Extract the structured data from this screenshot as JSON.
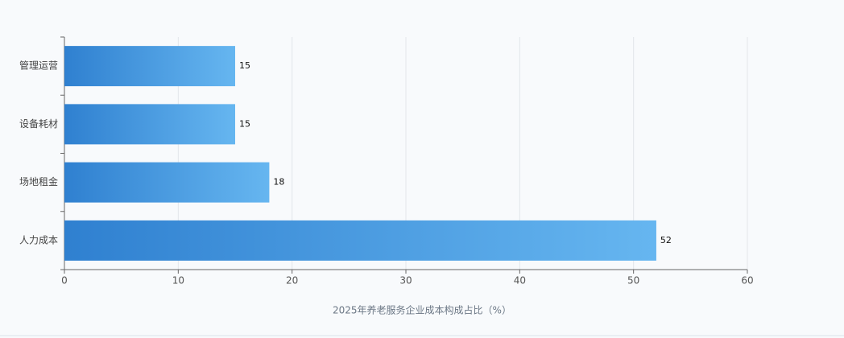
{
  "chart_data": {
    "type": "bar",
    "orientation": "horizontal",
    "x_label": "2025年养老服务企业成本构成占比（%）",
    "categories": [
      "管理运营",
      "设备耗材",
      "场地租金",
      "人力成本"
    ],
    "values": [
      15,
      15,
      18,
      52
    ],
    "color": [
      "#2f80d0",
      "#66b6f0"
    ],
    "xlim": [
      0,
      60
    ],
    "xticks": [
      0,
      10,
      20,
      30,
      40,
      50,
      60
    ],
    "grid": true
  }
}
